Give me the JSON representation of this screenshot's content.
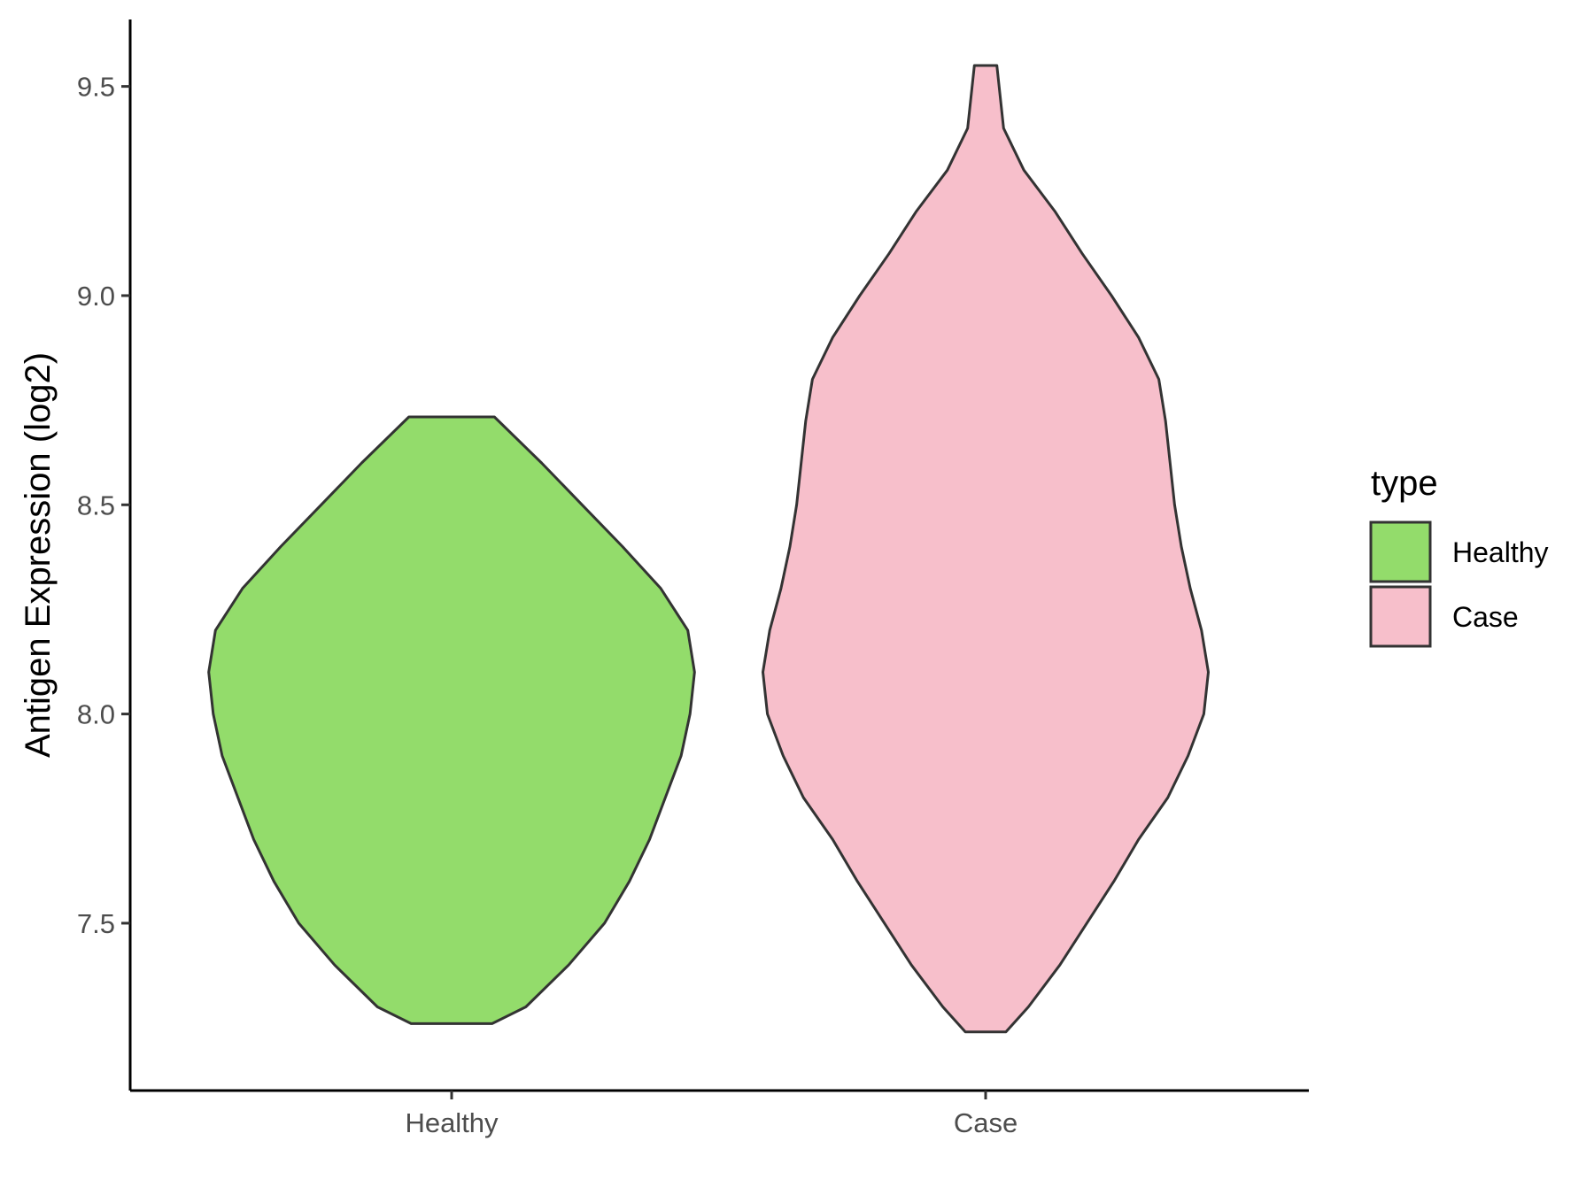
{
  "chart_data": {
    "type": "violin",
    "title": "",
    "xlabel": "",
    "ylabel": "Antigen Expression (log2)",
    "ylim": [
      7.1,
      9.66
    ],
    "yticks": [
      7.5,
      8.0,
      8.5,
      9.0,
      9.5
    ],
    "ytick_labels": [
      "7.5",
      "8.0",
      "8.5",
      "9.0",
      "9.5"
    ],
    "categories": [
      "Healthy",
      "Case"
    ],
    "grid": false,
    "legend": {
      "title": "type",
      "position": "right",
      "entries": [
        {
          "label": "Healthy",
          "color": "#93DC6B"
        },
        {
          "label": "Case",
          "color": "#F7BFCB"
        }
      ]
    },
    "series": [
      {
        "name": "Healthy",
        "color": "#93DC6B",
        "min": 7.26,
        "max": 8.71,
        "density": [
          [
            7.26,
            0.18
          ],
          [
            7.3,
            0.33
          ],
          [
            7.4,
            0.52
          ],
          [
            7.5,
            0.68
          ],
          [
            7.6,
            0.79
          ],
          [
            7.7,
            0.88
          ],
          [
            7.8,
            0.95
          ],
          [
            7.9,
            1.02
          ],
          [
            8.0,
            1.06
          ],
          [
            8.1,
            1.08
          ],
          [
            8.2,
            1.05
          ],
          [
            8.3,
            0.93
          ],
          [
            8.4,
            0.76
          ],
          [
            8.5,
            0.58
          ],
          [
            8.6,
            0.4
          ],
          [
            8.71,
            0.19
          ]
        ]
      },
      {
        "name": "Case",
        "color": "#F7BFCB",
        "min": 7.24,
        "max": 9.55,
        "density": [
          [
            7.24,
            0.09
          ],
          [
            7.3,
            0.19
          ],
          [
            7.4,
            0.33
          ],
          [
            7.5,
            0.45
          ],
          [
            7.6,
            0.57
          ],
          [
            7.7,
            0.68
          ],
          [
            7.8,
            0.81
          ],
          [
            7.9,
            0.9
          ],
          [
            8.0,
            0.97
          ],
          [
            8.1,
            0.99
          ],
          [
            8.2,
            0.96
          ],
          [
            8.3,
            0.91
          ],
          [
            8.4,
            0.87
          ],
          [
            8.5,
            0.84
          ],
          [
            8.6,
            0.82
          ],
          [
            8.7,
            0.8
          ],
          [
            8.8,
            0.77
          ],
          [
            8.9,
            0.68
          ],
          [
            9.0,
            0.56
          ],
          [
            9.1,
            0.43
          ],
          [
            9.2,
            0.31
          ],
          [
            9.3,
            0.17
          ],
          [
            9.4,
            0.08
          ],
          [
            9.55,
            0.05
          ]
        ]
      }
    ]
  }
}
